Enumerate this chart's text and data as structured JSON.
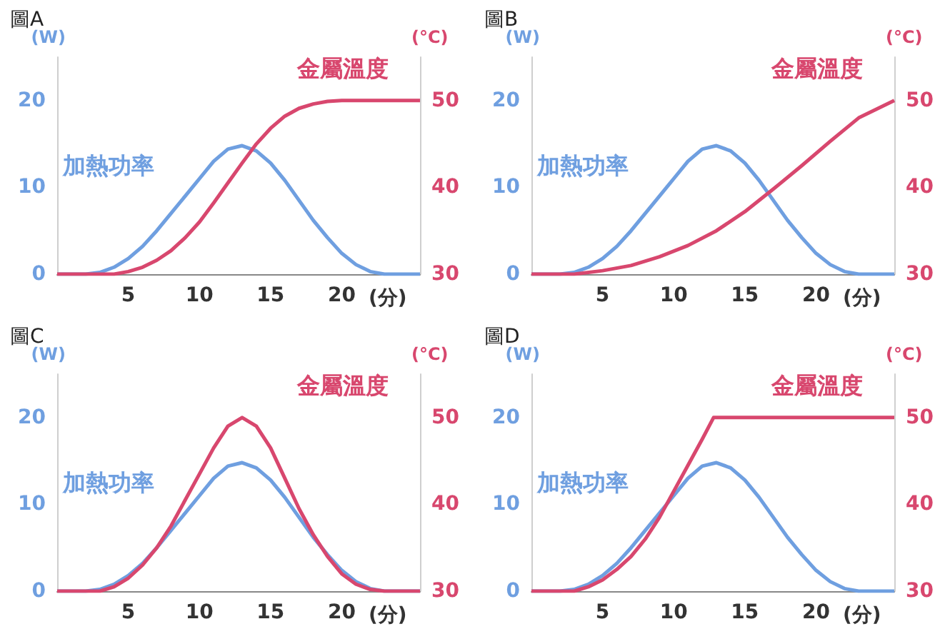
{
  "chart_data": [
    {
      "type": "line",
      "title": "圖A",
      "xlabel": "(分)",
      "ylabel": "(W)",
      "y2label": "(°C)",
      "xlim": [
        0,
        25.5
      ],
      "xticks": [
        5,
        10,
        15,
        20
      ],
      "ylim": [
        0,
        25
      ],
      "yticks": [
        0,
        10,
        20
      ],
      "y2lim": [
        30,
        55
      ],
      "y2ticks": [
        30,
        40,
        50
      ],
      "marker": "none",
      "series": [
        {
          "name": "加熱功率",
          "color": "#6f9fe0",
          "x": [
            0,
            2,
            3,
            4,
            5,
            6,
            7,
            8,
            9,
            10,
            11,
            12,
            13,
            14,
            15,
            16,
            17,
            18,
            19,
            20,
            21,
            22,
            23,
            25.5
          ],
          "values": [
            0,
            0,
            0.2,
            0.8,
            1.8,
            3.2,
            5,
            7,
            9,
            11,
            13,
            14.4,
            14.8,
            14.2,
            12.8,
            10.8,
            8.5,
            6.2,
            4.2,
            2.4,
            1.1,
            0.3,
            0,
            0
          ]
        },
        {
          "name": "金屬溫度",
          "color": "#d8476e",
          "axis": "y2",
          "x": [
            0,
            4,
            5,
            6,
            7,
            8,
            9,
            10,
            11,
            12,
            13,
            14,
            15,
            16,
            17,
            18,
            19,
            20,
            25.5
          ],
          "values": [
            30,
            30,
            30.3,
            30.8,
            31.6,
            32.7,
            34.2,
            36,
            38.2,
            40.5,
            42.8,
            45,
            46.8,
            48.2,
            49.1,
            49.6,
            49.9,
            50,
            50
          ]
        }
      ]
    },
    {
      "type": "line",
      "title": "圖B",
      "xlabel": "(分)",
      "ylabel": "(W)",
      "y2label": "(°C)",
      "xlim": [
        0,
        25.5
      ],
      "xticks": [
        5,
        10,
        15,
        20
      ],
      "ylim": [
        0,
        25
      ],
      "yticks": [
        0,
        10,
        20
      ],
      "y2lim": [
        30,
        55
      ],
      "y2ticks": [
        30,
        40,
        50
      ],
      "marker": "none",
      "series": [
        {
          "name": "加熱功率",
          "color": "#6f9fe0",
          "x": [
            0,
            2,
            3,
            4,
            5,
            6,
            7,
            8,
            9,
            10,
            11,
            12,
            13,
            14,
            15,
            16,
            17,
            18,
            19,
            20,
            21,
            22,
            23,
            25.5
          ],
          "values": [
            0,
            0,
            0.2,
            0.8,
            1.8,
            3.2,
            5,
            7,
            9,
            11,
            13,
            14.4,
            14.8,
            14.2,
            12.8,
            10.8,
            8.5,
            6.2,
            4.2,
            2.4,
            1.1,
            0.3,
            0,
            0
          ]
        },
        {
          "name": "金屬溫度",
          "color": "#d8476e",
          "axis": "y2",
          "x": [
            0,
            3,
            5,
            7,
            9,
            11,
            13,
            15,
            17,
            19,
            21,
            23,
            25.5
          ],
          "values": [
            30,
            30,
            30.4,
            31,
            32,
            33.3,
            35,
            37.2,
            39.8,
            42.5,
            45.3,
            48,
            50
          ]
        }
      ]
    },
    {
      "type": "line",
      "title": "圖C",
      "xlabel": "(分)",
      "ylabel": "(W)",
      "y2label": "(°C)",
      "xlim": [
        0,
        25.5
      ],
      "xticks": [
        5,
        10,
        15,
        20
      ],
      "ylim": [
        0,
        25
      ],
      "yticks": [
        0,
        10,
        20
      ],
      "y2lim": [
        30,
        55
      ],
      "y2ticks": [
        30,
        40,
        50
      ],
      "marker": "none",
      "series": [
        {
          "name": "加熱功率",
          "color": "#6f9fe0",
          "x": [
            0,
            2,
            3,
            4,
            5,
            6,
            7,
            8,
            9,
            10,
            11,
            12,
            13,
            14,
            15,
            16,
            17,
            18,
            19,
            20,
            21,
            22,
            23,
            25.5
          ],
          "values": [
            0,
            0,
            0.2,
            0.8,
            1.8,
            3.2,
            5,
            7,
            9,
            11,
            13,
            14.4,
            14.8,
            14.2,
            12.8,
            10.8,
            8.5,
            6.2,
            4.2,
            2.4,
            1.1,
            0.3,
            0,
            0
          ]
        },
        {
          "name": "金屬溫度",
          "color": "#d8476e",
          "axis": "y2",
          "x": [
            0,
            3,
            4,
            5,
            6,
            7,
            8,
            9,
            10,
            11,
            12,
            13,
            14,
            15,
            16,
            17,
            18,
            19,
            20,
            21,
            22,
            23,
            25.5
          ],
          "values": [
            30,
            30,
            30.5,
            31.5,
            33,
            35,
            37.5,
            40.5,
            43.5,
            46.5,
            49,
            50,
            49,
            46.5,
            43,
            39.5,
            36.5,
            34,
            32,
            30.8,
            30.2,
            30,
            30
          ]
        }
      ]
    },
    {
      "type": "line",
      "title": "圖D",
      "xlabel": "(分)",
      "ylabel": "(W)",
      "y2label": "(°C)",
      "xlim": [
        0,
        25.5
      ],
      "xticks": [
        5,
        10,
        15,
        20
      ],
      "ylim": [
        0,
        25
      ],
      "yticks": [
        0,
        10,
        20
      ],
      "y2lim": [
        30,
        55
      ],
      "y2ticks": [
        30,
        40,
        50
      ],
      "marker": "none",
      "series": [
        {
          "name": "加熱功率",
          "color": "#6f9fe0",
          "x": [
            0,
            2,
            3,
            4,
            5,
            6,
            7,
            8,
            9,
            10,
            11,
            12,
            13,
            14,
            15,
            16,
            17,
            18,
            19,
            20,
            21,
            22,
            23,
            25.5
          ],
          "values": [
            0,
            0,
            0.2,
            0.8,
            1.8,
            3.2,
            5,
            7,
            9,
            11,
            13,
            14.4,
            14.8,
            14.2,
            12.8,
            10.8,
            8.5,
            6.2,
            4.2,
            2.4,
            1.1,
            0.3,
            0,
            0
          ]
        },
        {
          "name": "金屬溫度",
          "color": "#d8476e",
          "axis": "y2",
          "x": [
            0,
            3,
            4,
            5,
            6,
            7,
            8,
            9,
            10,
            11,
            12,
            12.8,
            25.5
          ],
          "values": [
            30,
            30,
            30.5,
            31.3,
            32.5,
            34,
            36,
            38.5,
            41.5,
            44.5,
            47.5,
            50,
            50
          ]
        }
      ]
    }
  ]
}
